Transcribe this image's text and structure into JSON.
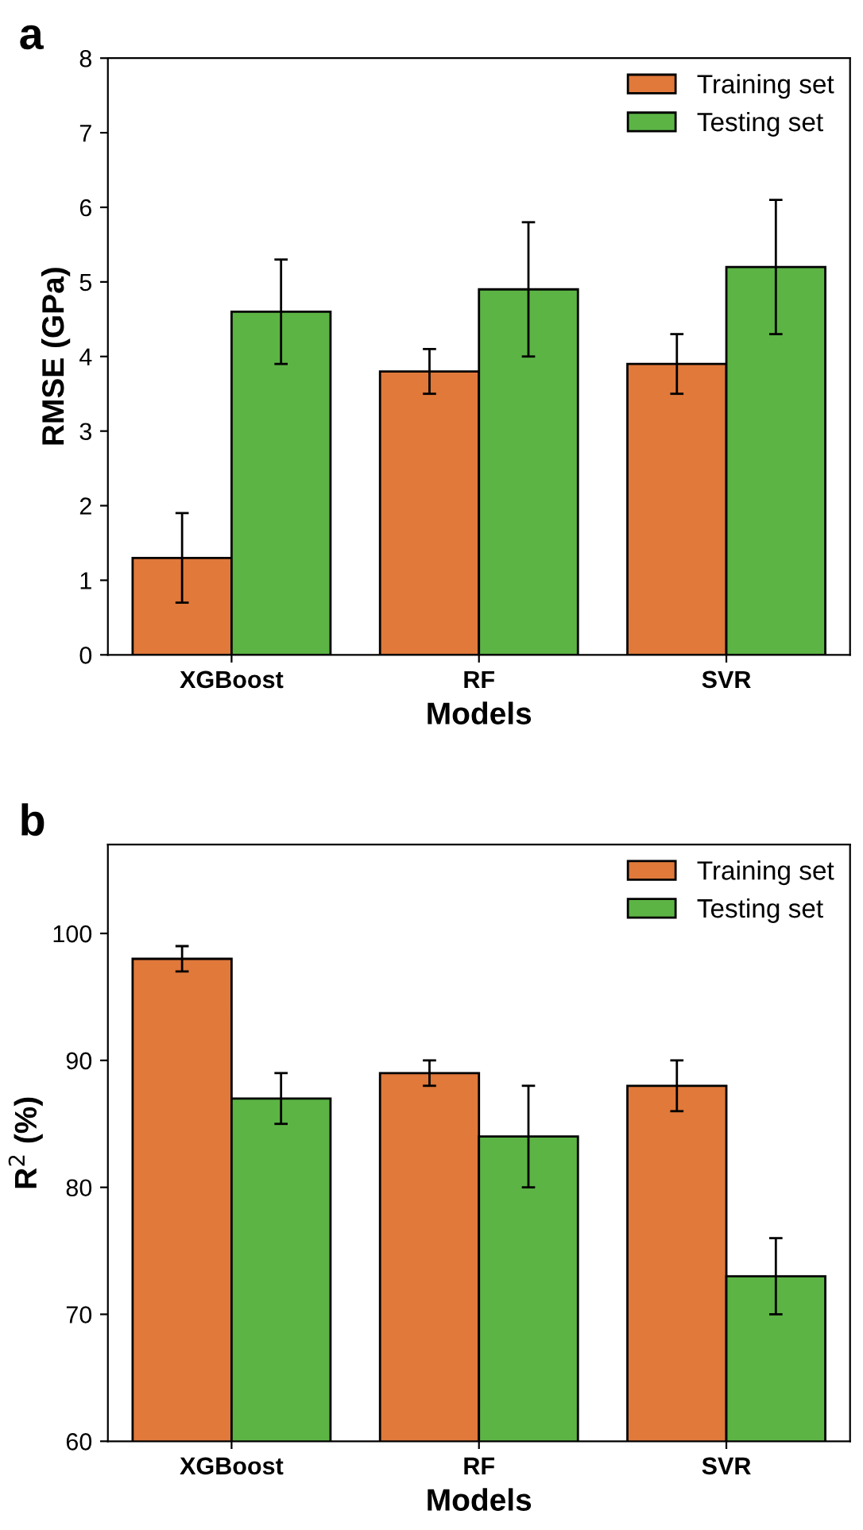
{
  "chart_data": [
    {
      "type": "bar",
      "annotations": [
        "a"
      ],
      "xlabel": "Models",
      "ylabel": "RMSE (GPa)",
      "categories": [
        "XGBoost",
        "RF",
        "SVR"
      ],
      "ylim": [
        0,
        8
      ],
      "yticks": [
        0,
        1,
        2,
        3,
        4,
        5,
        6,
        7,
        8
      ],
      "grid": false,
      "legend": "top right",
      "series": [
        {
          "name": "Training set",
          "color": "#e0793a",
          "values": [
            1.3,
            3.8,
            3.9
          ],
          "errors": [
            [
              0.7,
              1.9
            ],
            [
              3.5,
              4.1
            ],
            [
              3.5,
              4.3
            ]
          ]
        },
        {
          "name": "Testing set",
          "color": "#5cb445",
          "values": [
            4.6,
            4.9,
            5.2
          ],
          "errors": [
            [
              3.9,
              5.3
            ],
            [
              4.0,
              5.8
            ],
            [
              4.3,
              6.1
            ]
          ]
        }
      ]
    },
    {
      "type": "bar",
      "annotations": [
        "b"
      ],
      "xlabel": "Models",
      "ylabel": "R$^{2}$ (%)",
      "categories": [
        "XGBoost",
        "RF",
        "SVR"
      ],
      "ylim": [
        60,
        107
      ],
      "yticks": [
        60,
        70,
        80,
        90,
        100
      ],
      "grid": false,
      "legend": "top right",
      "series": [
        {
          "name": "Training set",
          "color": "#e0793a",
          "values": [
            98,
            89,
            88
          ],
          "errors": [
            [
              97,
              99
            ],
            [
              88,
              90
            ],
            [
              86,
              90
            ]
          ]
        },
        {
          "name": "Testing set",
          "color": "#5cb445",
          "values": [
            87,
            84,
            73
          ],
          "errors": [
            [
              85,
              89
            ],
            [
              80,
              88
            ],
            [
              70,
              76
            ]
          ]
        }
      ]
    }
  ]
}
